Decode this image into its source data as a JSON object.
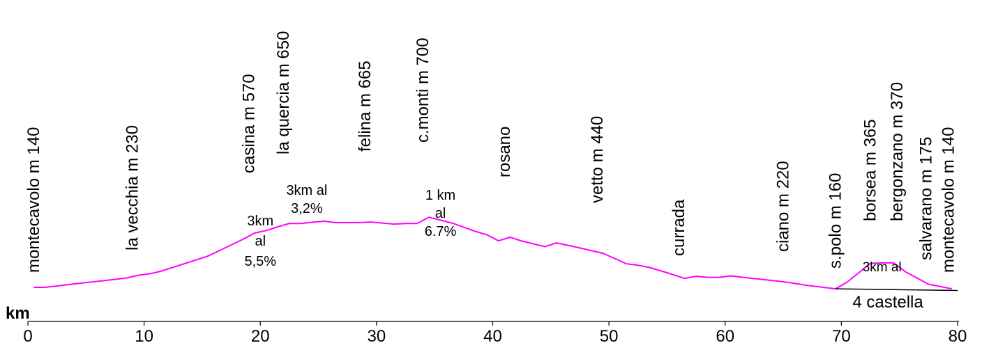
{
  "chart_data": {
    "type": "line",
    "title": "",
    "xlabel": "km",
    "ylabel": "",
    "xlim": [
      0,
      80
    ],
    "x_ticks": [
      "0",
      "10",
      "20",
      "30",
      "40",
      "50",
      "60",
      "70",
      "80"
    ],
    "grid": false,
    "series": [
      {
        "color": "#ff00ff",
        "points": [
          [
            0.5,
            140
          ],
          [
            1.5,
            140
          ],
          [
            3,
            150
          ],
          [
            5,
            163
          ],
          [
            7,
            175
          ],
          [
            8.5,
            185
          ],
          [
            9.5,
            198
          ],
          [
            10.5,
            205
          ],
          [
            11.5,
            218
          ],
          [
            13,
            245
          ],
          [
            14.5,
            272
          ],
          [
            15.5,
            290
          ],
          [
            17,
            330
          ],
          [
            18.5,
            370
          ],
          [
            19.5,
            400
          ],
          [
            20.5,
            412
          ],
          [
            21.5,
            430
          ],
          [
            22.5,
            446
          ],
          [
            23.5,
            446
          ],
          [
            24.5,
            452
          ],
          [
            25.5,
            457
          ],
          [
            26.5,
            450
          ],
          [
            28.5,
            450
          ],
          [
            29.5,
            453
          ],
          [
            31.5,
            443
          ],
          [
            32.5,
            446
          ],
          [
            33.5,
            446
          ],
          [
            34.5,
            476
          ],
          [
            35.5,
            462
          ],
          [
            36.5,
            448
          ],
          [
            38.5,
            408
          ],
          [
            39.5,
            392
          ],
          [
            40.5,
            363
          ],
          [
            41.5,
            380
          ],
          [
            42.5,
            362
          ],
          [
            44.5,
            335
          ],
          [
            45.5,
            353
          ],
          [
            47,
            335
          ],
          [
            49.5,
            303
          ],
          [
            51.5,
            253
          ],
          [
            52.5,
            246
          ],
          [
            53.5,
            235
          ],
          [
            55,
            210
          ],
          [
            56.5,
            183
          ],
          [
            57.5,
            193
          ],
          [
            58.5,
            188
          ],
          [
            59.5,
            188
          ],
          [
            60.5,
            195
          ],
          [
            62,
            185
          ],
          [
            64.5,
            170
          ],
          [
            65.5,
            163
          ],
          [
            67,
            150
          ],
          [
            69.5,
            133
          ],
          [
            70.5,
            165
          ],
          [
            72.5,
            255
          ],
          [
            73.5,
            257
          ],
          [
            74.5,
            257
          ],
          [
            75.5,
            215
          ],
          [
            77.5,
            155
          ],
          [
            79.5,
            133
          ]
        ]
      }
    ],
    "baseline": {
      "color": "#000000",
      "points": [
        [
          69.5,
          133
        ],
        [
          80,
          125
        ]
      ]
    },
    "place_labels": [
      {
        "km": 1.5,
        "alt": 140,
        "text": "montecavolo m 140"
      },
      {
        "km": 10,
        "alt": 230,
        "text": "la vecchia m 230"
      },
      {
        "km": 20,
        "alt": 570,
        "text": "casina m 570"
      },
      {
        "km": 23,
        "alt": 650,
        "text": "la quercia m 650"
      },
      {
        "km": 30,
        "alt": 665,
        "text": "felina m 665"
      },
      {
        "km": 35,
        "alt": 700,
        "text": "c.monti m 700"
      },
      {
        "km": 42,
        "alt": 0,
        "text": "rosano"
      },
      {
        "km": 50,
        "alt": 440,
        "text": "vetto m 440"
      },
      {
        "km": 57,
        "alt": 0,
        "text": "currada"
      },
      {
        "km": 66,
        "alt": 220,
        "text": "ciano m 220"
      },
      {
        "km": 70.5,
        "alt": 160,
        "text": "s.polo m 160"
      },
      {
        "km": 73.5,
        "alt": 365,
        "text": "borsea m 365"
      },
      {
        "km": 75.8,
        "alt": 370,
        "text": "bergonzano m 370"
      },
      {
        "km": 78.3,
        "alt": 175,
        "text": "salvarano m 175"
      },
      {
        "km": 80.2,
        "alt": 140,
        "text": "montecavolo  m 140"
      }
    ],
    "annotations": [
      {
        "km": 20,
        "lines": [
          "3km",
          "al",
          "5,5%"
        ]
      },
      {
        "km": 24,
        "lines": [
          "3km al",
          "3,2%"
        ]
      },
      {
        "km": 35.5,
        "lines": [
          "1 km",
          "al",
          "6.7%"
        ]
      },
      {
        "km": 73.5,
        "lines": [
          "3km al"
        ]
      },
      {
        "km": 74,
        "lines": [
          "4 castella"
        ]
      }
    ]
  }
}
